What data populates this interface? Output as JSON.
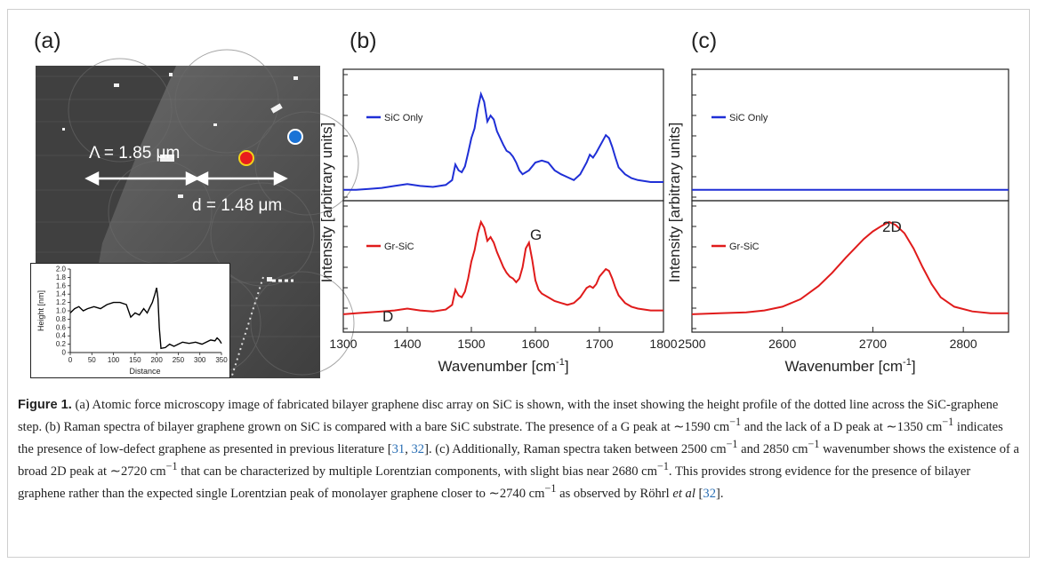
{
  "panels": {
    "a": "(a)",
    "b": "(b)",
    "c": "(c)"
  },
  "afm": {
    "lambda_label": "Λ = 1.85 μm",
    "d_label": "d = 1.48 μm",
    "marker_colors": {
      "red": "#e81d1d",
      "blue": "#1a73d6"
    }
  },
  "chart_data": [
    {
      "type": "line",
      "panel": "a-inset",
      "xlabel": "Distance",
      "ylabel": "Height [nm]",
      "xlim": [
        0,
        350
      ],
      "ylim": [
        0,
        2.0
      ],
      "xticks": [
        "0",
        "50",
        "100",
        "150",
        "200",
        "250",
        "300",
        "350"
      ],
      "yticks": [
        "0",
        "0.2",
        "0.4",
        "0.6",
        "0.8",
        "1.0",
        "1.2",
        "1.4",
        "1.6",
        "1.8",
        "2.0"
      ],
      "series": [
        {
          "color": "#000000",
          "x": [
            0,
            10,
            20,
            30,
            40,
            55,
            70,
            85,
            100,
            115,
            130,
            140,
            150,
            160,
            170,
            178,
            185,
            190,
            196,
            200,
            203,
            206,
            210,
            220,
            230,
            240,
            250,
            260,
            275,
            290,
            305,
            315,
            325,
            335,
            340,
            345,
            350
          ],
          "y": [
            0.95,
            1.05,
            1.1,
            1.0,
            1.05,
            1.1,
            1.05,
            1.15,
            1.2,
            1.2,
            1.15,
            0.85,
            0.95,
            0.9,
            1.05,
            0.95,
            1.1,
            1.2,
            1.4,
            1.55,
            1.3,
            0.6,
            0.1,
            0.12,
            0.2,
            0.15,
            0.2,
            0.25,
            0.22,
            0.25,
            0.2,
            0.25,
            0.3,
            0.28,
            0.35,
            0.3,
            0.22
          ]
        }
      ]
    },
    {
      "type": "line",
      "panel": "b",
      "xlabel": "Wavenumber [cm",
      "xlabel_sup": "-1",
      "xlabel_end": "]",
      "ylabel": "Intensity [arbitrary units]",
      "xlim": [
        1300,
        1800
      ],
      "xticks": [
        "1300",
        "1400",
        "1500",
        "1600",
        "1700",
        "1800"
      ],
      "annotations": {
        "D": "D",
        "G": "G"
      },
      "series": [
        {
          "name": "SiC Only",
          "color": "#1f2fd6",
          "x": [
            1300,
            1320,
            1340,
            1360,
            1380,
            1400,
            1420,
            1440,
            1460,
            1470,
            1475,
            1480,
            1485,
            1490,
            1495,
            1500,
            1505,
            1510,
            1515,
            1520,
            1525,
            1530,
            1535,
            1540,
            1545,
            1550,
            1555,
            1560,
            1565,
            1570,
            1575,
            1580,
            1590,
            1600,
            1610,
            1620,
            1630,
            1640,
            1650,
            1660,
            1670,
            1680,
            1685,
            1690,
            1695,
            1700,
            1705,
            1710,
            1715,
            1720,
            1725,
            1730,
            1740,
            1750,
            1760,
            1780,
            1800
          ],
          "y": [
            0.02,
            0.02,
            0.03,
            0.04,
            0.06,
            0.08,
            0.06,
            0.05,
            0.07,
            0.12,
            0.28,
            0.22,
            0.2,
            0.26,
            0.4,
            0.55,
            0.65,
            0.85,
            1.0,
            0.92,
            0.72,
            0.78,
            0.74,
            0.62,
            0.55,
            0.48,
            0.42,
            0.4,
            0.36,
            0.3,
            0.22,
            0.18,
            0.22,
            0.3,
            0.32,
            0.3,
            0.22,
            0.18,
            0.15,
            0.12,
            0.18,
            0.3,
            0.38,
            0.35,
            0.4,
            0.46,
            0.52,
            0.58,
            0.55,
            0.46,
            0.35,
            0.25,
            0.18,
            0.14,
            0.12,
            0.1,
            0.1
          ]
        },
        {
          "name": "Gr-SiC",
          "color": "#e01b1b",
          "x": [
            1300,
            1320,
            1340,
            1360,
            1380,
            1400,
            1420,
            1440,
            1460,
            1470,
            1475,
            1480,
            1485,
            1490,
            1495,
            1500,
            1505,
            1510,
            1515,
            1520,
            1525,
            1530,
            1535,
            1540,
            1545,
            1550,
            1555,
            1560,
            1565,
            1570,
            1575,
            1580,
            1585,
            1590,
            1595,
            1600,
            1605,
            1610,
            1620,
            1630,
            1640,
            1650,
            1660,
            1670,
            1680,
            1685,
            1690,
            1695,
            1700,
            1705,
            1710,
            1715,
            1720,
            1725,
            1730,
            1740,
            1750,
            1760,
            1780,
            1800
          ],
          "y": [
            0.02,
            0.03,
            0.04,
            0.05,
            0.06,
            0.08,
            0.06,
            0.05,
            0.07,
            0.12,
            0.28,
            0.22,
            0.2,
            0.26,
            0.4,
            0.58,
            0.7,
            0.88,
            1.0,
            0.94,
            0.8,
            0.84,
            0.78,
            0.68,
            0.6,
            0.52,
            0.46,
            0.42,
            0.4,
            0.36,
            0.4,
            0.52,
            0.72,
            0.78,
            0.6,
            0.38,
            0.28,
            0.24,
            0.2,
            0.16,
            0.14,
            0.12,
            0.14,
            0.2,
            0.3,
            0.32,
            0.3,
            0.34,
            0.42,
            0.46,
            0.5,
            0.48,
            0.4,
            0.3,
            0.22,
            0.14,
            0.1,
            0.08,
            0.06,
            0.06
          ]
        }
      ]
    },
    {
      "type": "line",
      "panel": "c",
      "xlabel": "Wavenumber [cm",
      "xlabel_sup": "-1",
      "xlabel_end": "]",
      "ylabel": "Intensity [arbitrary units]",
      "xlim": [
        2500,
        2850
      ],
      "xticks": [
        "2500",
        "2600",
        "2700",
        "2800"
      ],
      "annotations": {
        "2D": "2D"
      },
      "series": [
        {
          "name": "SiC Only",
          "color": "#1f2fd6",
          "x": [
            2500,
            2850
          ],
          "y": [
            0.02,
            0.02
          ]
        },
        {
          "name": "Gr-SiC",
          "color": "#e01b1b",
          "x": [
            2500,
            2530,
            2560,
            2580,
            2600,
            2620,
            2640,
            2655,
            2670,
            2680,
            2690,
            2700,
            2710,
            2718,
            2725,
            2735,
            2745,
            2755,
            2765,
            2775,
            2790,
            2810,
            2830,
            2850
          ],
          "y": [
            0.02,
            0.03,
            0.04,
            0.06,
            0.1,
            0.18,
            0.32,
            0.46,
            0.62,
            0.72,
            0.82,
            0.9,
            0.96,
            1.0,
            0.97,
            0.88,
            0.72,
            0.52,
            0.34,
            0.2,
            0.1,
            0.05,
            0.03,
            0.03
          ]
        }
      ]
    }
  ],
  "caption": {
    "label": "Figure 1.",
    "part1": " (a) Atomic force microscopy image of fabricated bilayer graphene disc array on SiC is shown, with the inset showing the height profile of the dotted line across the SiC-graphene step. (b) Raman spectra of bilayer graphene grown on SiC is compared with a bare SiC substrate. The presence of a G peak at ∼1590 cm",
    "sup1": "−1",
    "part2": " and the lack of a D peak at ∼1350 cm",
    "sup2": "−1",
    "part3": " indicates the presence of low-defect graphene as presented in previous literature [",
    "cite1": "31",
    "sep1": ", ",
    "cite2": "32",
    "part4": "]. (c) Additionally, Raman spectra taken between 2500 cm",
    "sup3": "−1",
    "part5": " and 2850 cm",
    "sup4": "−1",
    "part6": " wavenumber shows the existence of a broad 2D peak at ∼2720 cm",
    "sup5": "−1",
    "part7": " that can be characterized by multiple Lorentzian components, with slight bias near 2680 cm",
    "sup6": "−1",
    "part8": ". This provides strong evidence for the presence of bilayer graphene rather than the expected single Lorentzian peak of monolayer graphene closer to ∼2740 cm",
    "sup7": "−1",
    "part9": " as observed by Röhrl ",
    "etal": "et al",
    "part10": " [",
    "cite3": "32",
    "part11": "]."
  }
}
